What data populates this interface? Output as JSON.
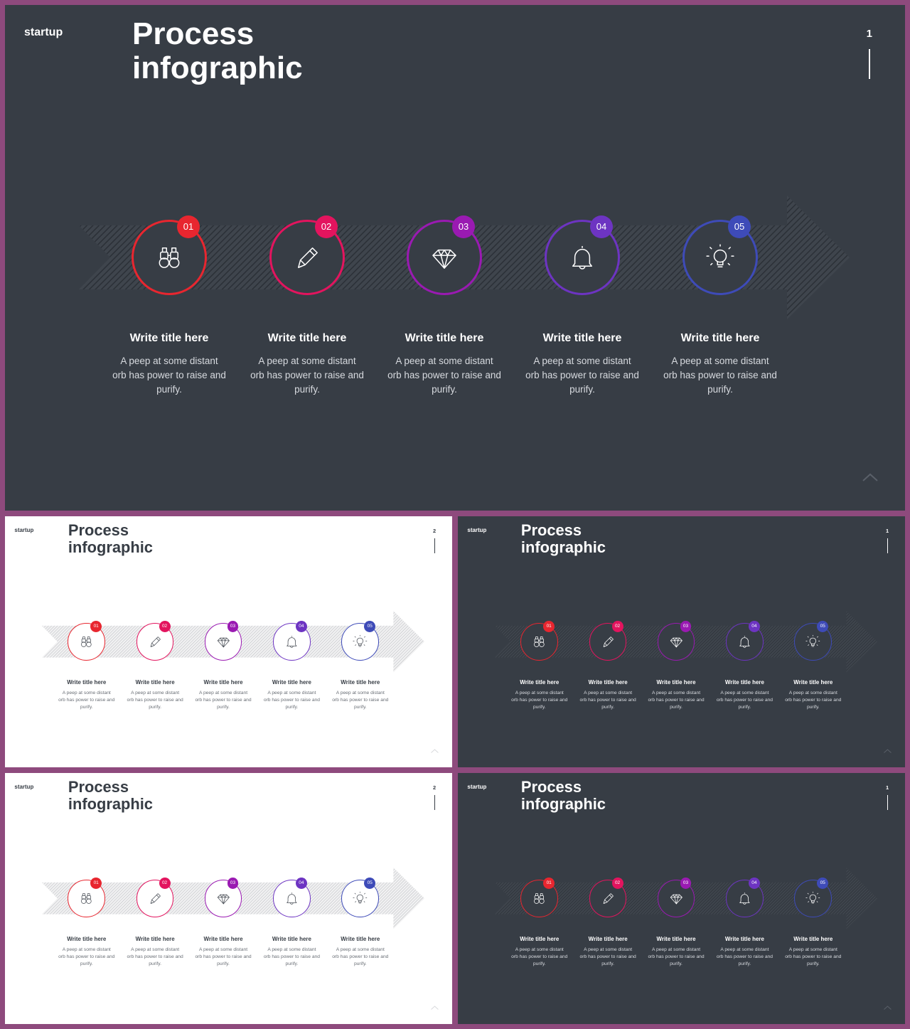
{
  "slides": [
    {
      "theme": "dark",
      "brand": "startup",
      "title_line1": "Process",
      "title_line2": "infographic",
      "page_number": "1",
      "steps": [
        {
          "number": "01",
          "icon": "binoculars-icon",
          "title": "Write title here",
          "description": "A peep at some distant orb has power to raise and purify."
        },
        {
          "number": "02",
          "icon": "pencil-icon",
          "title": "Write title here",
          "description": "A peep at some distant orb has power to raise and purify."
        },
        {
          "number": "03",
          "icon": "diamond-icon",
          "title": "Write title here",
          "description": "A peep at some distant orb has power to raise and purify."
        },
        {
          "number": "04",
          "icon": "bell-icon",
          "title": "Write title here",
          "description": "A peep at some distant orb has power to raise and purify."
        },
        {
          "number": "05",
          "icon": "lightbulb-icon",
          "title": "Write title here",
          "description": "A peep at some distant orb has power to raise and purify."
        }
      ]
    },
    {
      "theme": "light",
      "brand": "startup",
      "title_line1": "Process",
      "title_line2": "infographic",
      "page_number": "2",
      "steps": [
        {
          "number": "01",
          "icon": "binoculars-icon",
          "title": "Write title here",
          "description": "A peep at some distant orb has power to raise and purify."
        },
        {
          "number": "02",
          "icon": "pencil-icon",
          "title": "Write title here",
          "description": "A peep at some distant orb has power to raise and purify."
        },
        {
          "number": "03",
          "icon": "diamond-icon",
          "title": "Write title here",
          "description": "A peep at some distant orb has power to raise and purify."
        },
        {
          "number": "04",
          "icon": "bell-icon",
          "title": "Write title here",
          "description": "A peep at some distant orb has power to raise and purify."
        },
        {
          "number": "05",
          "icon": "lightbulb-icon",
          "title": "Write title here",
          "description": "A peep at some distant orb has power to raise and purify."
        }
      ]
    },
    {
      "theme": "dark",
      "brand": "startup",
      "title_line1": "Process",
      "title_line2": "infographic",
      "page_number": "1",
      "steps": [
        {
          "number": "01",
          "icon": "binoculars-icon",
          "title": "Write title here",
          "description": "A peep at some distant orb has power to raise and purify."
        },
        {
          "number": "02",
          "icon": "pencil-icon",
          "title": "Write title here",
          "description": "A peep at some distant orb has power to raise and purify."
        },
        {
          "number": "03",
          "icon": "diamond-icon",
          "title": "Write title here",
          "description": "A peep at some distant orb has power to raise and purify."
        },
        {
          "number": "04",
          "icon": "bell-icon",
          "title": "Write title here",
          "description": "A peep at some distant orb has power to raise and purify."
        },
        {
          "number": "05",
          "icon": "lightbulb-icon",
          "title": "Write title here",
          "description": "A peep at some distant orb has power to raise and purify."
        }
      ]
    },
    {
      "theme": "light",
      "brand": "startup",
      "title_line1": "Process",
      "title_line2": "infographic",
      "page_number": "2",
      "steps": [
        {
          "number": "01",
          "icon": "binoculars-icon",
          "title": "Write title here",
          "description": "A peep at some distant orb has power to raise and purify."
        },
        {
          "number": "02",
          "icon": "pencil-icon",
          "title": "Write title here",
          "description": "A peep at some distant orb has power to raise and purify."
        },
        {
          "number": "03",
          "icon": "diamond-icon",
          "title": "Write title here",
          "description": "A peep at some distant orb has power to raise and purify."
        },
        {
          "number": "04",
          "icon": "bell-icon",
          "title": "Write title here",
          "description": "A peep at some distant orb has power to raise and purify."
        },
        {
          "number": "05",
          "icon": "lightbulb-icon",
          "title": "Write title here",
          "description": "A peep at some distant orb has power to raise and purify."
        }
      ]
    },
    {
      "theme": "dark",
      "brand": "startup",
      "title_line1": "Process",
      "title_line2": "infographic",
      "page_number": "1",
      "steps": [
        {
          "number": "01",
          "icon": "binoculars-icon",
          "title": "Write title here",
          "description": "A peep at some distant orb has power to raise and purify."
        },
        {
          "number": "02",
          "icon": "pencil-icon",
          "title": "Write title here",
          "description": "A peep at some distant orb has power to raise and purify."
        },
        {
          "number": "03",
          "icon": "diamond-icon",
          "title": "Write title here",
          "description": "A peep at some distant orb has power to raise and purify."
        },
        {
          "number": "04",
          "icon": "bell-icon",
          "title": "Write title here",
          "description": "A peep at some distant orb has power to raise and purify."
        },
        {
          "number": "05",
          "icon": "lightbulb-icon",
          "title": "Write title here",
          "description": "A peep at some distant orb has power to raise and purify."
        }
      ]
    }
  ],
  "colors": {
    "frame": "#8e4a7d",
    "dark_bg": "#373d45",
    "light_bg": "#ffffff",
    "step_colors": [
      "#e8262f",
      "#e3145e",
      "#9a1ab2",
      "#6d34c2",
      "#3e4bb8"
    ]
  }
}
